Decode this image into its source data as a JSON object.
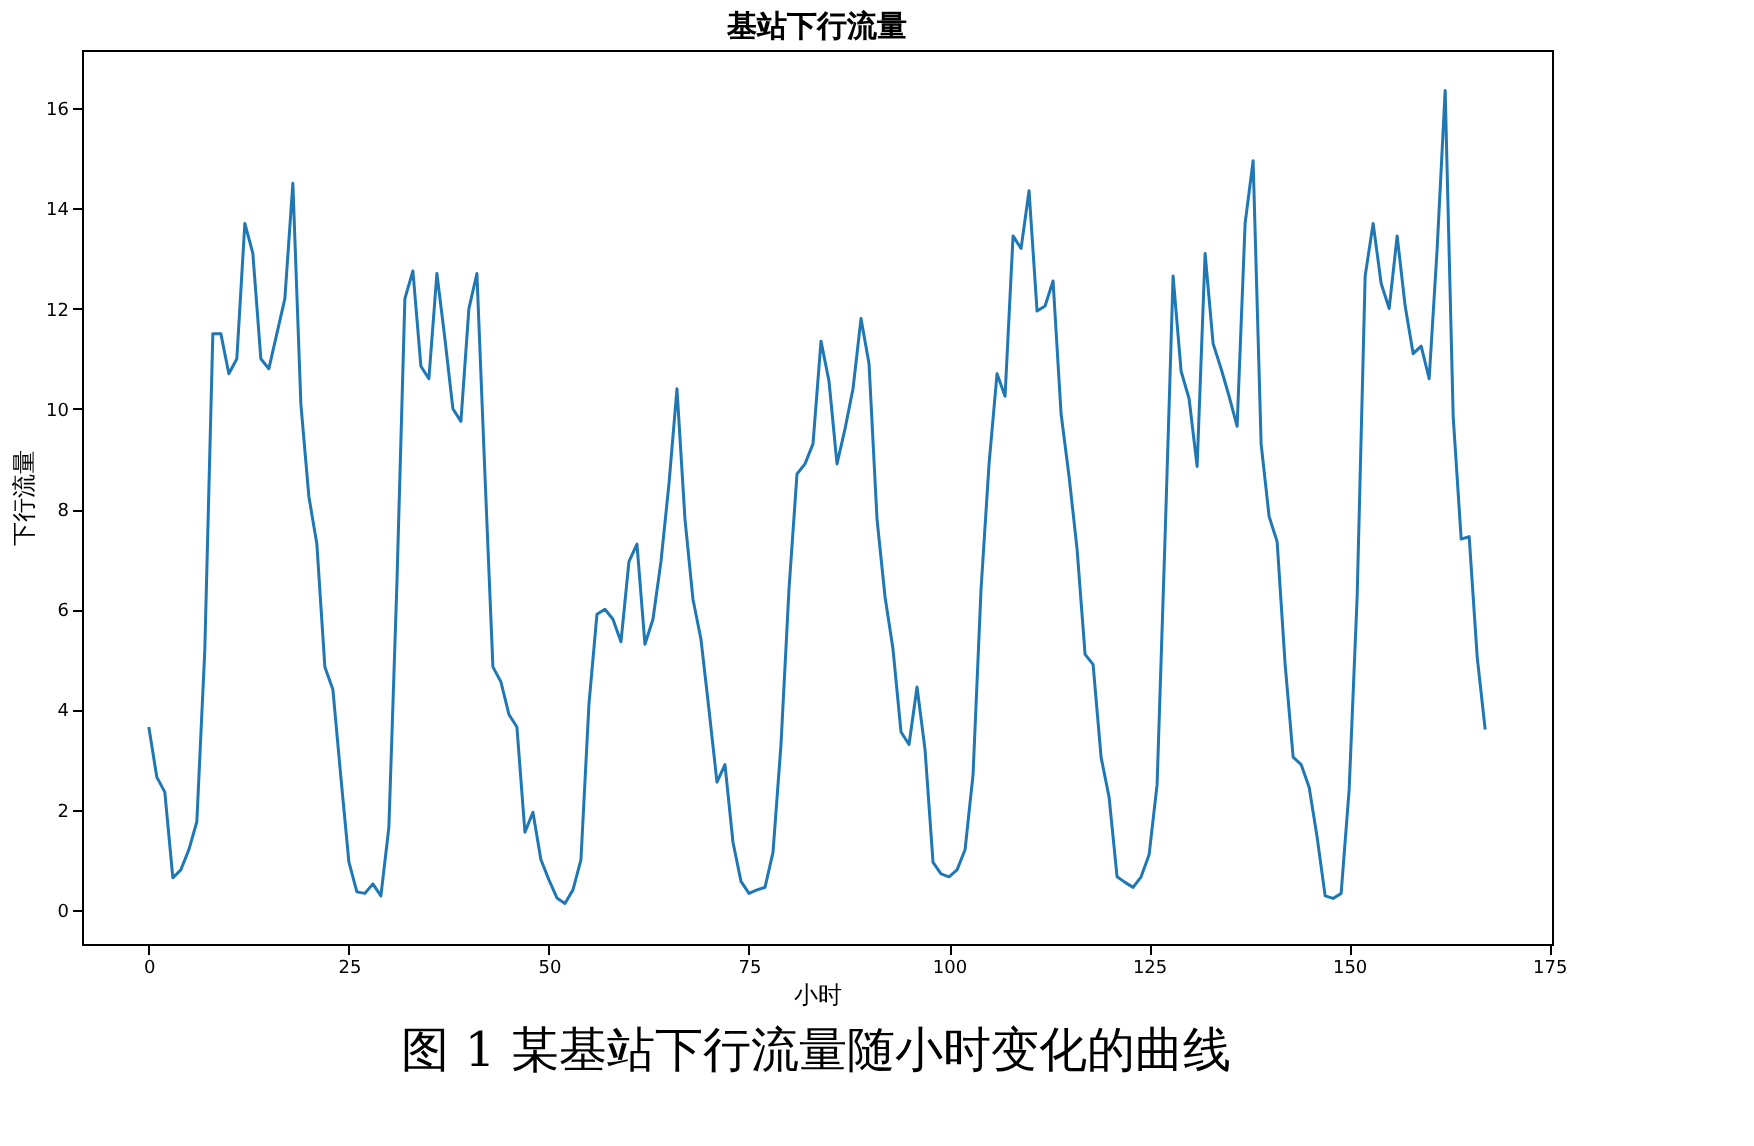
{
  "chart_data": {
    "type": "line",
    "title": "基站下行流量",
    "xlabel": "小时",
    "ylabel": "下行流量",
    "x": [
      0,
      1,
      2,
      3,
      4,
      5,
      6,
      7,
      8,
      9,
      10,
      11,
      12,
      13,
      14,
      15,
      16,
      17,
      18,
      19,
      20,
      21,
      22,
      23,
      24,
      25,
      26,
      27,
      28,
      29,
      30,
      31,
      32,
      33,
      34,
      35,
      36,
      37,
      38,
      39,
      40,
      41,
      42,
      43,
      44,
      45,
      46,
      47,
      48,
      49,
      50,
      51,
      52,
      53,
      54,
      55,
      56,
      57,
      58,
      59,
      60,
      61,
      62,
      63,
      64,
      65,
      66,
      67,
      68,
      69,
      70,
      71,
      72,
      73,
      74,
      75,
      76,
      77,
      78,
      79,
      80,
      81,
      82,
      83,
      84,
      85,
      86,
      87,
      88,
      89,
      90,
      91,
      92,
      93,
      94,
      95,
      96,
      97,
      98,
      99,
      100,
      101,
      102,
      103,
      104,
      105,
      106,
      107,
      108,
      109,
      110,
      111,
      112,
      113,
      114,
      115,
      116,
      117,
      118,
      119,
      120,
      121,
      122,
      123,
      124,
      125,
      126,
      127,
      128,
      129,
      130,
      131,
      132,
      133,
      134,
      135,
      136,
      137,
      138,
      139,
      140,
      141,
      142,
      143,
      144,
      145,
      146,
      147,
      148,
      149,
      150,
      151,
      152,
      153,
      154,
      155,
      156,
      157,
      158,
      159,
      160,
      161,
      162,
      163,
      164,
      165,
      166,
      167
    ],
    "series": [
      {
        "color": "#1f77b4",
        "values": [
          3.65,
          2.65,
          2.35,
          0.64,
          0.8,
          1.2,
          1.76,
          5.2,
          11.5,
          11.5,
          10.7,
          11.0,
          13.7,
          13.1,
          11.0,
          10.8,
          11.5,
          12.2,
          14.5,
          10.1,
          8.25,
          7.3,
          4.85,
          4.4,
          2.65,
          0.96,
          0.36,
          0.33,
          0.52,
          0.28,
          1.65,
          6.5,
          12.2,
          12.75,
          10.85,
          10.6,
          12.7,
          11.4,
          10.0,
          9.75,
          12.0,
          12.7,
          8.7,
          4.85,
          4.55,
          3.9,
          3.65,
          1.55,
          1.95,
          1.0,
          0.6,
          0.24,
          0.13,
          0.4,
          1.0,
          4.1,
          5.9,
          6.0,
          5.8,
          5.35,
          6.95,
          7.3,
          5.3,
          5.8,
          6.95,
          8.5,
          10.4,
          7.8,
          6.2,
          5.4,
          4.0,
          2.55,
          2.9,
          1.35,
          0.57,
          0.33,
          0.4,
          0.45,
          1.15,
          3.3,
          6.4,
          8.7,
          8.9,
          9.3,
          11.35,
          10.55,
          8.9,
          9.6,
          10.4,
          11.8,
          10.9,
          7.8,
          6.25,
          5.2,
          3.55,
          3.3,
          4.45,
          3.2,
          0.95,
          0.72,
          0.66,
          0.8,
          1.2,
          2.7,
          6.4,
          8.9,
          10.7,
          10.25,
          13.45,
          13.2,
          14.35,
          11.95,
          12.05,
          12.55,
          9.9,
          8.65,
          7.2,
          5.1,
          4.9,
          3.05,
          2.25,
          0.66,
          0.55,
          0.45,
          0.66,
          1.1,
          2.5,
          7.45,
          12.65,
          10.75,
          10.2,
          8.85,
          13.1,
          11.3,
          10.8,
          10.25,
          9.65,
          13.7,
          14.95,
          9.3,
          7.85,
          7.35,
          4.9,
          3.05,
          2.9,
          2.45,
          1.45,
          0.28,
          0.23,
          0.33,
          2.4,
          6.25,
          12.65,
          13.7,
          12.5,
          12.0,
          13.45,
          12.05,
          11.1,
          11.25,
          10.6,
          13.2,
          16.35,
          9.85,
          7.4,
          7.45,
          5.05,
          3.6
        ]
      }
    ],
    "xlim": [
      -8.35,
      175.35
    ],
    "xticks": [
      0,
      25,
      50,
      75,
      100,
      125,
      150,
      175
    ],
    "ylim": [
      -0.68,
      17.16
    ],
    "yticks": [
      0,
      2,
      4,
      6,
      8,
      10,
      12,
      14,
      16
    ],
    "grid": false,
    "marker": "none",
    "line_style": "solid",
    "annotations": [
      "图 1 某基站下行流量随小时变化的曲线"
    ]
  }
}
